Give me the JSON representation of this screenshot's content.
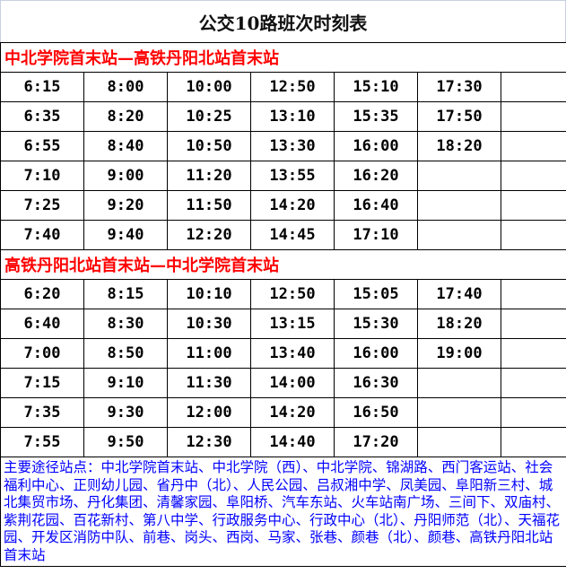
{
  "title": "公交10路班次时刻表",
  "sections": [
    {
      "header": "中北学院首末站—高铁丹阳北站首末站",
      "rows": [
        [
          "6:15",
          "8:00",
          "10:00",
          "12:50",
          "15:10",
          "17:30",
          ""
        ],
        [
          "6:35",
          "8:20",
          "10:25",
          "13:10",
          "15:35",
          "17:50",
          ""
        ],
        [
          "6:55",
          "8:40",
          "10:50",
          "13:30",
          "16:00",
          "18:20",
          ""
        ],
        [
          "7:10",
          "9:00",
          "11:20",
          "13:55",
          "16:20",
          "",
          ""
        ],
        [
          "7:25",
          "9:20",
          "11:50",
          "14:20",
          "16:40",
          "",
          ""
        ],
        [
          "7:40",
          "9:40",
          "12:20",
          "14:45",
          "17:10",
          "",
          ""
        ]
      ]
    },
    {
      "header": "高铁丹阳北站首末站—中北学院首末站",
      "rows": [
        [
          "6:20",
          "8:15",
          "10:10",
          "12:50",
          "15:05",
          "17:40",
          ""
        ],
        [
          "6:40",
          "8:30",
          "10:30",
          "13:15",
          "15:30",
          "18:20",
          ""
        ],
        [
          "7:00",
          "8:50",
          "11:00",
          "13:40",
          "16:00",
          "19:00",
          ""
        ],
        [
          "7:15",
          "9:10",
          "11:30",
          "14:00",
          "16:30",
          "",
          ""
        ],
        [
          "7:35",
          "9:30",
          "12:00",
          "14:20",
          "16:50",
          "",
          ""
        ],
        [
          "7:55",
          "9:50",
          "12:30",
          "14:40",
          "17:20",
          "",
          ""
        ]
      ]
    }
  ],
  "stops": "主要途径站点：中北学院首末站、中北学院（西）、中北学院、锦湖路、西门客运站、社会福利中心、正则幼儿园、省丹中（北）、人民公园、吕叔湘中学、凤美园、阜阳新三村、城北集贸市场、丹化集团、清馨家园、阜阳桥、汽车东站、火车站南广场、三间下、双庙村、紫荆花园、百花新村、第八中学、行政服务中心、行政中心（北）、丹阳师范（北）、天福花园、开发区消防中队、前巷、岗头、西岗、马家、张巷、颜巷（北）、颜巷、高铁丹阳北站首末站",
  "colors": {
    "section_header": "#ff0000",
    "stops_text": "#0000ff"
  }
}
